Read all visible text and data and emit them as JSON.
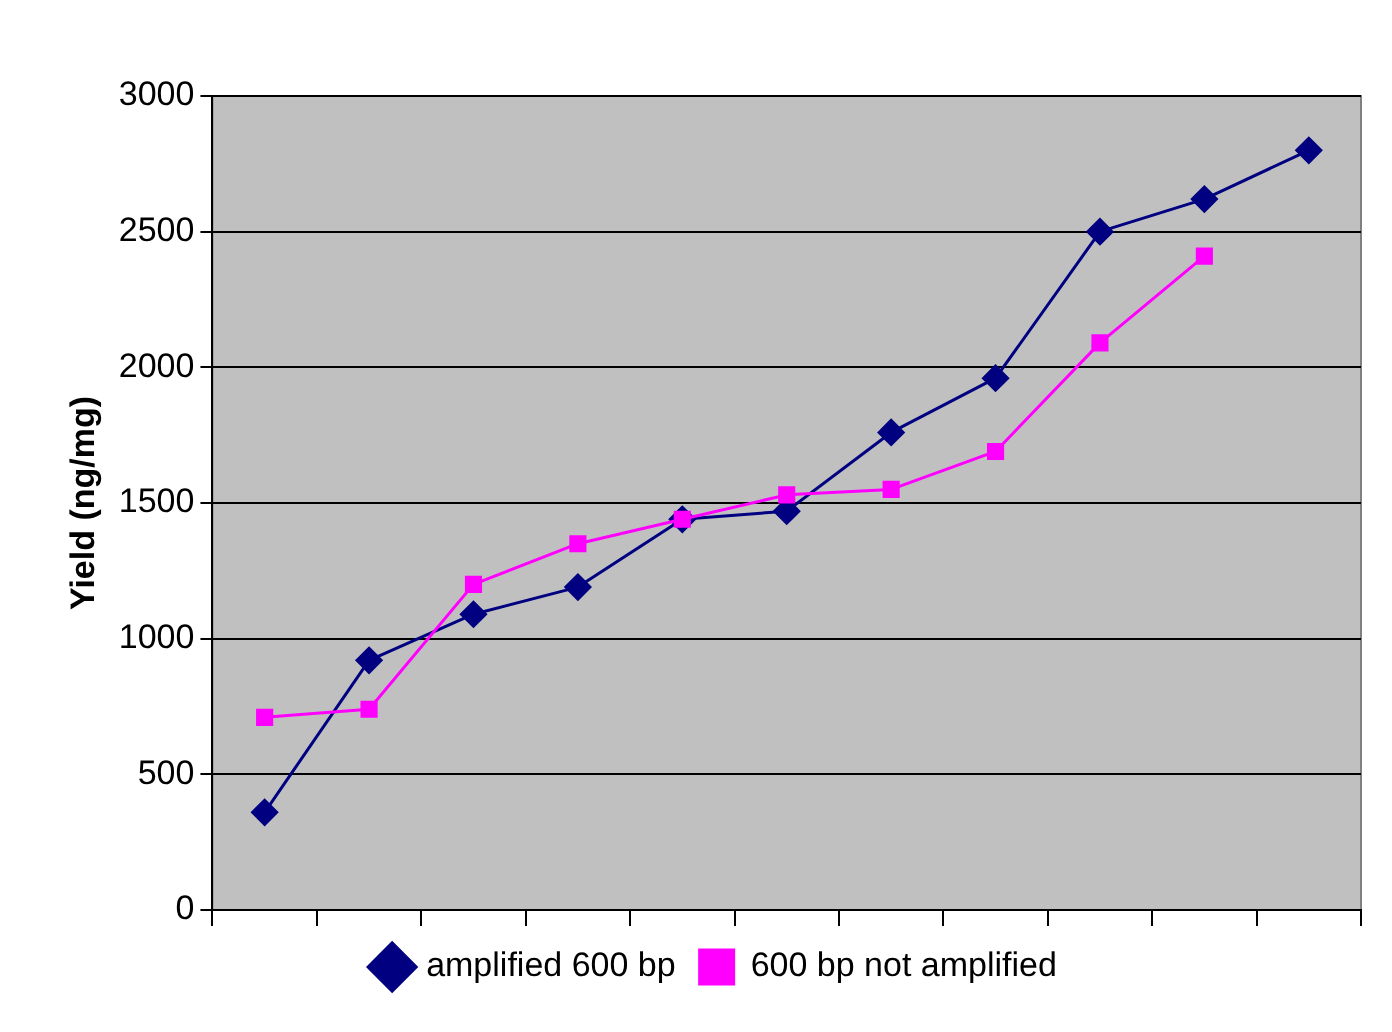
{
  "chart_data": {
    "type": "line",
    "ylabel": "Yield (ng/mg)",
    "categories": [
      null,
      null,
      null,
      null,
      null,
      null,
      null,
      null,
      null,
      null,
      null
    ],
    "series": [
      {
        "name": "amplified 600 bp",
        "color": "#000080",
        "marker": "diamond",
        "values": [
          360,
          920,
          1090,
          1190,
          1440,
          1470,
          1760,
          1960,
          2500,
          2620,
          2800
        ]
      },
      {
        "name": "600 bp not amplified",
        "color": "#ff00ff",
        "marker": "square",
        "values": [
          710,
          740,
          1200,
          1350,
          1440,
          1530,
          1550,
          1690,
          2090,
          2410,
          null
        ]
      }
    ],
    "ylim": [
      0,
      3000
    ],
    "yticks": [
      0,
      500,
      1000,
      1500,
      2000,
      2500,
      3000
    ],
    "grid": "y",
    "legend": "bottom",
    "line_style": "solid"
  }
}
